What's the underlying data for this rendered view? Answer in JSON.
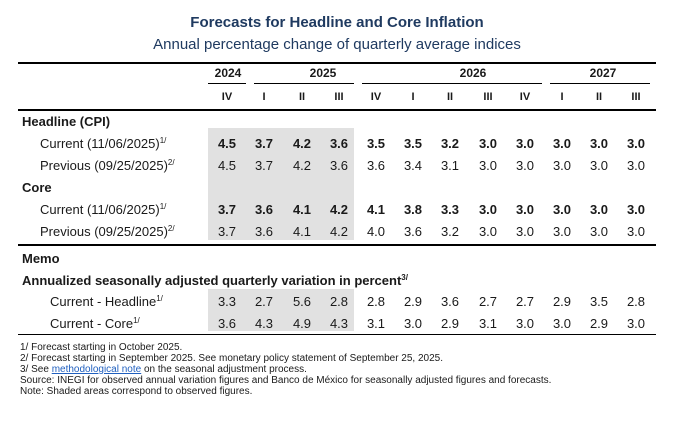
{
  "title": "Forecasts for Headline and Core Inflation",
  "subtitle": "Annual percentage change of quarterly average indices",
  "years": [
    "2024",
    "2025",
    "2026",
    "2027"
  ],
  "quarters": [
    "IV",
    "I",
    "II",
    "III",
    "IV",
    "I",
    "II",
    "III",
    "IV",
    "I",
    "II",
    "III"
  ],
  "headline": {
    "section": "Headline (CPI)",
    "current_label": "Current (11/06/2025)",
    "current_note": "1/",
    "current": [
      "4.5",
      "3.7",
      "4.2",
      "3.6",
      "3.5",
      "3.5",
      "3.2",
      "3.0",
      "3.0",
      "3.0",
      "3.0",
      "3.0"
    ],
    "previous_label": "Previous (09/25/2025)",
    "previous_note": "2/",
    "previous": [
      "4.5",
      "3.7",
      "4.2",
      "3.6",
      "3.6",
      "3.4",
      "3.1",
      "3.0",
      "3.0",
      "3.0",
      "3.0",
      "3.0"
    ]
  },
  "core": {
    "section": "Core",
    "current_label": "Current (11/06/2025)",
    "current_note": "1/",
    "current": [
      "3.7",
      "3.6",
      "4.1",
      "4.2",
      "4.1",
      "3.8",
      "3.3",
      "3.0",
      "3.0",
      "3.0",
      "3.0",
      "3.0"
    ],
    "previous_label": "Previous (09/25/2025)",
    "previous_note": "2/",
    "previous": [
      "3.7",
      "3.6",
      "4.1",
      "4.2",
      "4.0",
      "3.6",
      "3.2",
      "3.0",
      "3.0",
      "3.0",
      "3.0",
      "3.0"
    ]
  },
  "memo": {
    "section": "Memo",
    "subtitle": "Annualized seasonally adjusted quarterly variation in percent",
    "subtitle_note": "3/",
    "headline_label": "Current - Headline",
    "headline_note": "1/",
    "headline": [
      "3.3",
      "2.7",
      "5.6",
      "2.8",
      "2.8",
      "2.9",
      "3.6",
      "2.7",
      "2.7",
      "2.9",
      "3.5",
      "2.8"
    ],
    "core_label": "Current - Core",
    "core_note": "1/",
    "core": [
      "3.6",
      "4.3",
      "4.9",
      "4.3",
      "3.1",
      "3.0",
      "2.9",
      "3.1",
      "3.0",
      "3.0",
      "2.9",
      "3.0"
    ]
  },
  "notes": {
    "n1": "1/ Forecast starting in October 2025.",
    "n2": "2/ Forecast starting in September 2025. See monetary policy statement of September 25, 2025.",
    "n3_pre": "3/ See ",
    "n3_link": "methodological note",
    "n3_post": " on the seasonal adjustment process.",
    "source": "Source: INEGI for observed annual variation figures and Banco de México for seasonally adjusted figures and forecasts.",
    "shade": "Note: Shaded areas correspond to observed figures."
  },
  "colors": {
    "title": "#1f3a60",
    "shade": "#e1e1e1",
    "link": "#1f5fbf"
  }
}
